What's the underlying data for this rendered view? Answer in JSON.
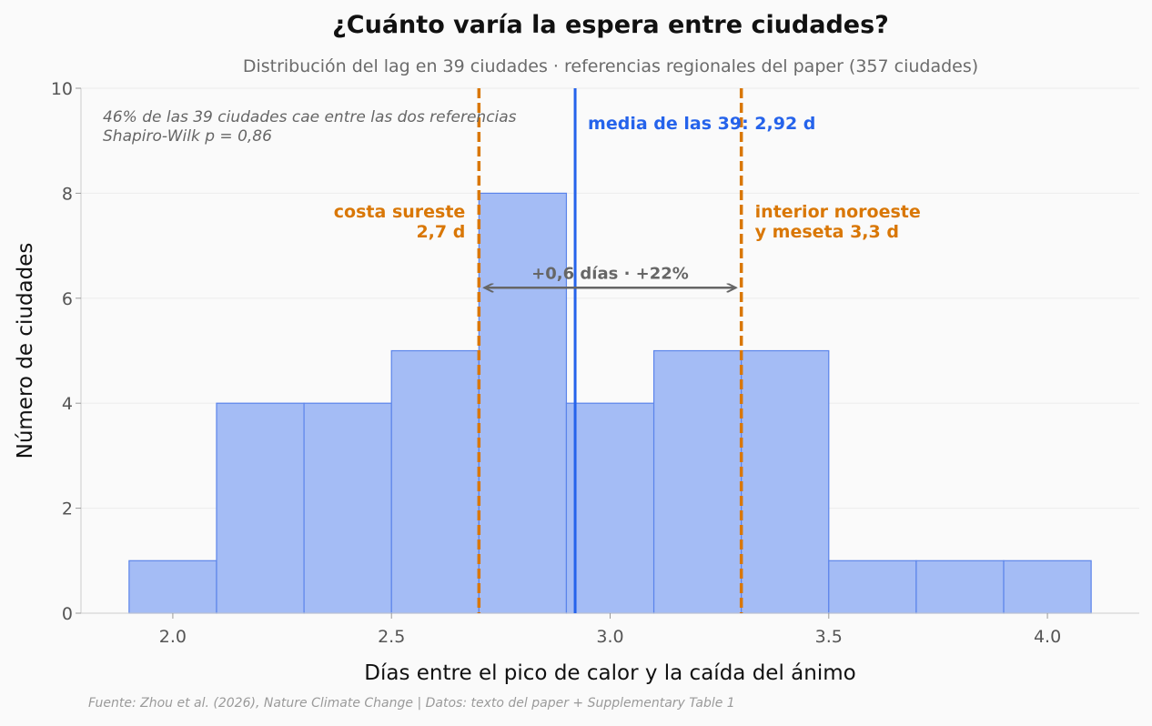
{
  "chart_data": {
    "type": "bar",
    "title": "¿Cuánto varía la espera entre ciudades?",
    "subtitle": "Distribución del lag en 39 ciudades · referencias regionales del paper (357 ciudades)",
    "xlabel": "Días entre el pico de calor y la caída del ánimo",
    "ylabel": "Número de ciudades",
    "xlim": [
      1.79,
      4.21
    ],
    "ylim": [
      0,
      10
    ],
    "x_ticks": [
      2.0,
      2.5,
      3.0,
      3.5,
      4.0
    ],
    "x_tick_labels": [
      "2.0",
      "2.5",
      "3.0",
      "3.5",
      "4.0"
    ],
    "y_ticks": [
      0,
      2,
      4,
      6,
      8,
      10
    ],
    "y_tick_labels": [
      "0",
      "2",
      "4",
      "6",
      "8",
      "10"
    ],
    "grid": "horizontal",
    "bins": [
      {
        "start": 1.9,
        "end": 2.1,
        "count": 1
      },
      {
        "start": 2.1,
        "end": 2.3,
        "count": 4
      },
      {
        "start": 2.3,
        "end": 2.5,
        "count": 4
      },
      {
        "start": 2.5,
        "end": 2.7,
        "count": 5
      },
      {
        "start": 2.7,
        "end": 2.9,
        "count": 8
      },
      {
        "start": 2.9,
        "end": 3.1,
        "count": 4
      },
      {
        "start": 3.1,
        "end": 3.3,
        "count": 5
      },
      {
        "start": 3.3,
        "end": 3.5,
        "count": 5
      },
      {
        "start": 3.5,
        "end": 3.7,
        "count": 1
      },
      {
        "start": 3.7,
        "end": 3.9,
        "count": 1
      },
      {
        "start": 3.9,
        "end": 4.1,
        "count": 1
      }
    ],
    "mean_line": {
      "x": 2.92,
      "label": "media de las 39: 2,92 d"
    },
    "reference_lines": [
      {
        "x": 2.7,
        "label_lines": [
          "costa sureste",
          "2,7 d"
        ]
      },
      {
        "x": 3.3,
        "label_lines": [
          "interior noroeste",
          "y meseta 3,3 d"
        ]
      }
    ],
    "difference_arrow": {
      "from": 2.7,
      "to": 3.3,
      "y": 6.2,
      "label": "+0,6 días · +22%"
    },
    "stats_annotation": [
      "46% de las 39 ciudades cae entre las dos referencias",
      "Shapiro-Wilk p = 0,86"
    ],
    "source": "Fuente: Zhou et al. (2026), Nature Climate Change | Datos: texto del paper + Supplementary Table 1",
    "colors": {
      "bar_fill": "#a4bcf5",
      "bar_edge": "#5b84ea",
      "mean_line": "#2563eb",
      "reference_line": "#d97706",
      "arrow": "#666666",
      "grid": "#ececec",
      "tick_text": "#555555"
    }
  }
}
